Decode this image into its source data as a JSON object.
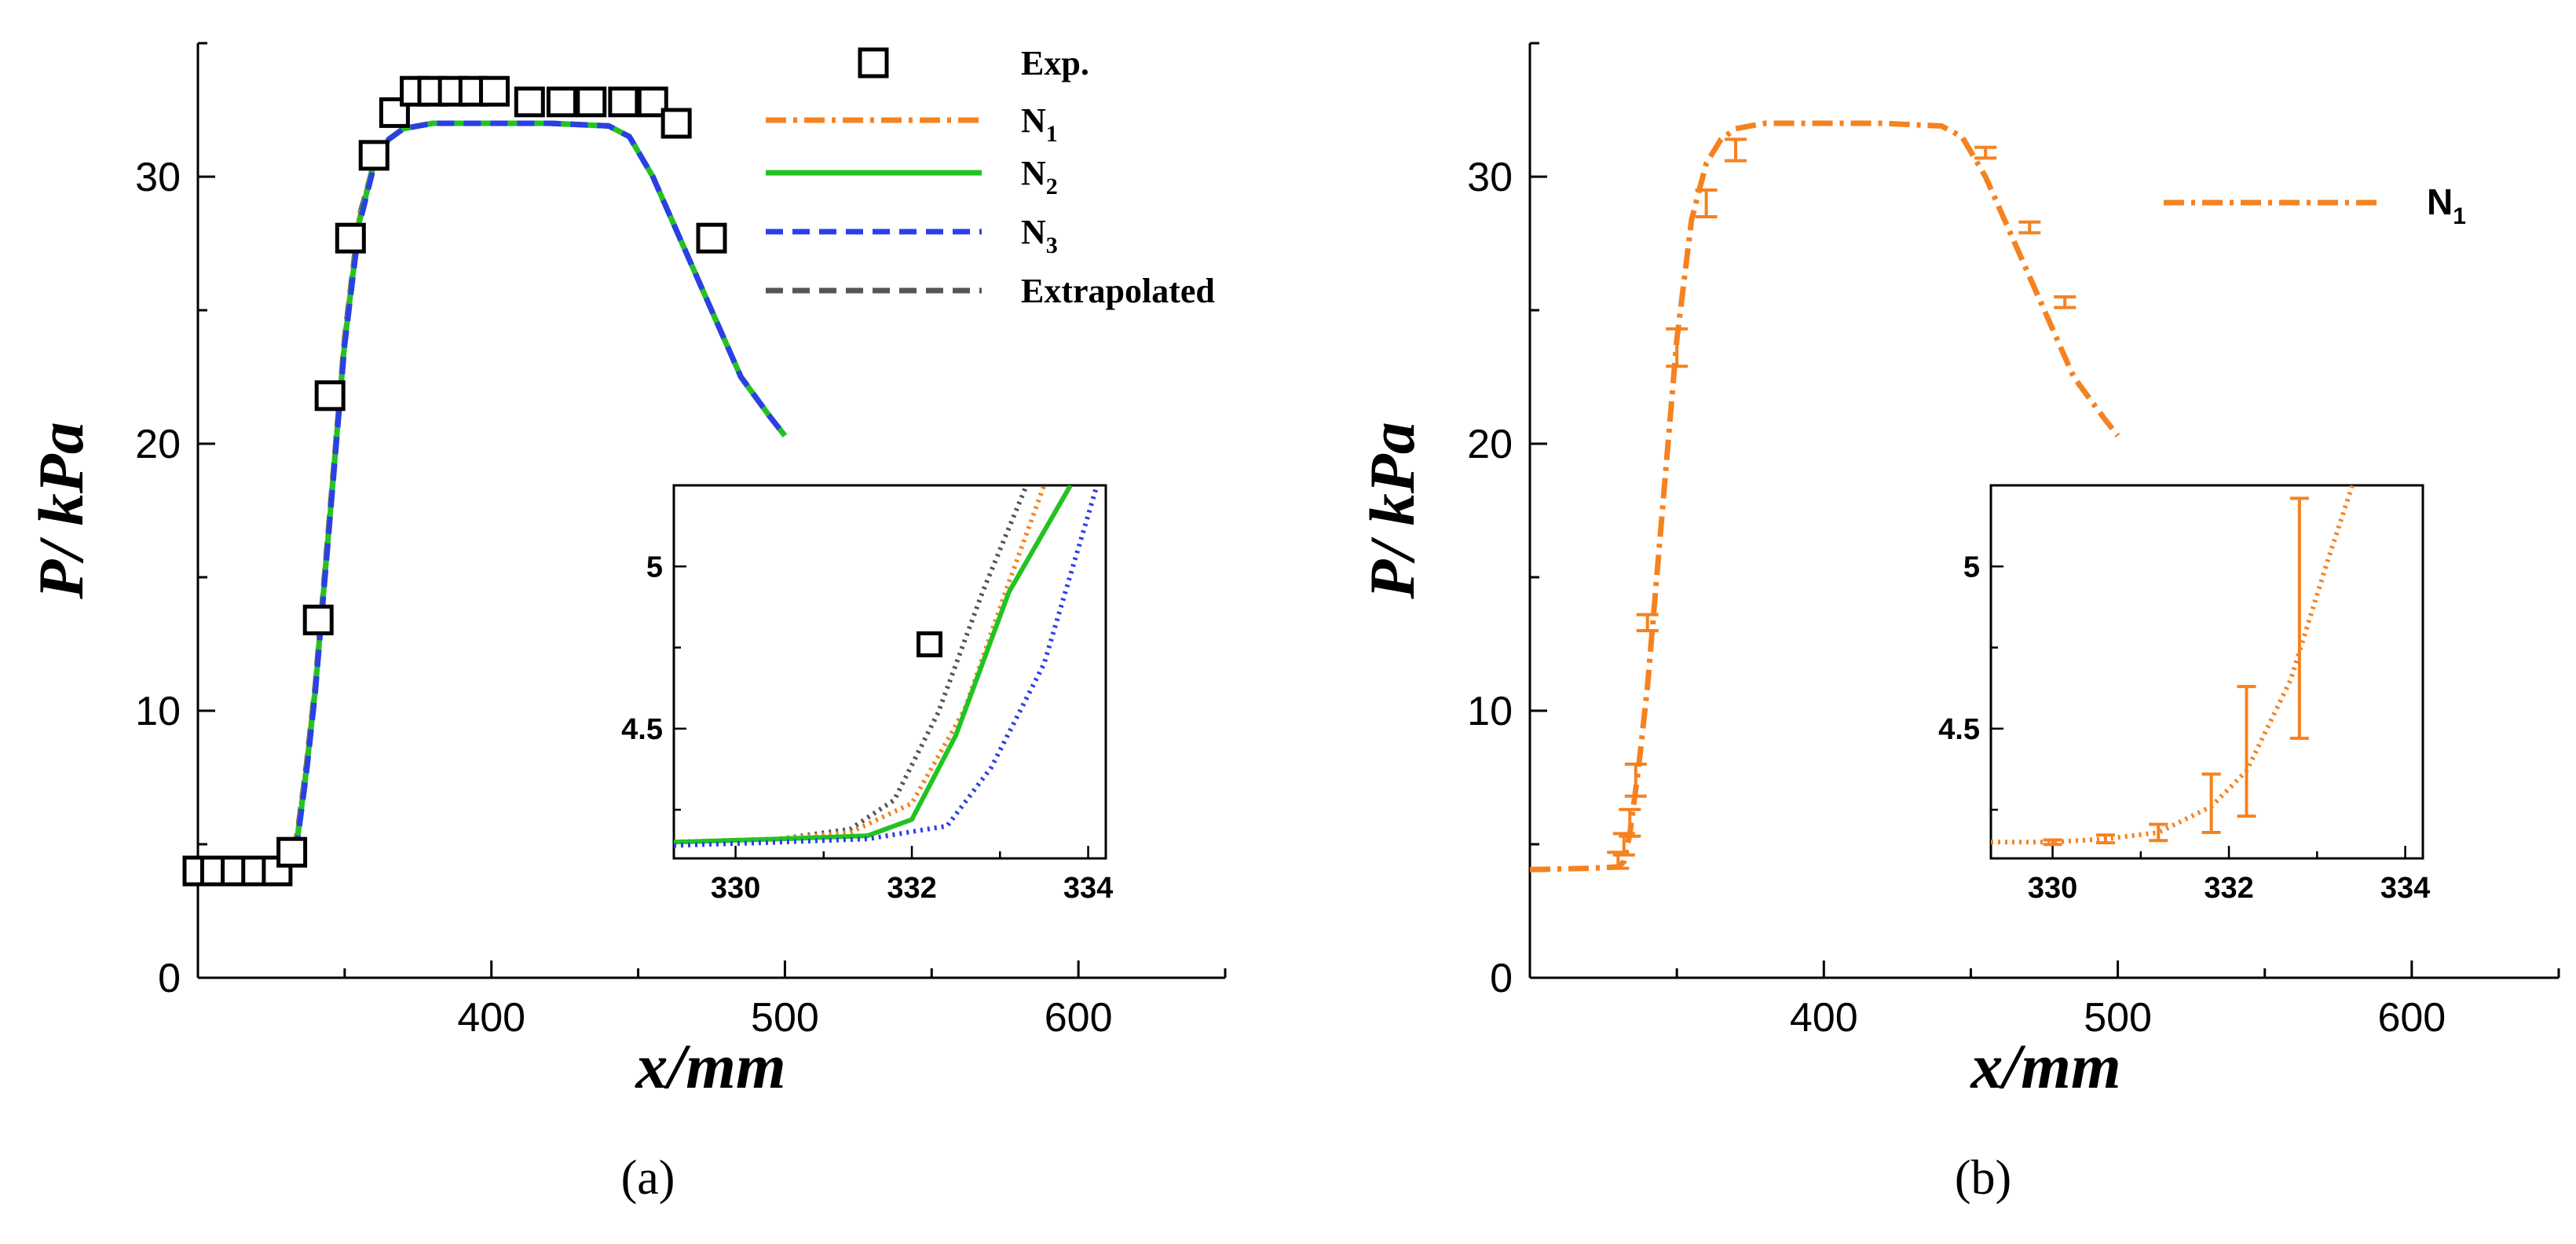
{
  "figure": {
    "caption_a": "(a)",
    "caption_b": "(b)"
  },
  "colors": {
    "experiment": "#000000",
    "N1": "#f58220",
    "N2": "#22c322",
    "N3": "#2b3fe6",
    "extrapolated": "#555555",
    "axes": "#000000"
  },
  "chart_data": [
    {
      "id": "a",
      "type": "line",
      "xlabel": "x/mm",
      "ylabel": "P/ kPa",
      "xlim": [
        300,
        650
      ],
      "ylim": [
        0,
        35
      ],
      "xticks": [
        400,
        500,
        600
      ],
      "yticks": [
        0,
        10,
        20,
        30
      ],
      "legend_position": "top-right",
      "legend": [
        {
          "label": "Exp.",
          "sub": "",
          "key": "exp",
          "style": "square-marker"
        },
        {
          "label": "N",
          "sub": "1",
          "key": "N1",
          "style": "dashdot"
        },
        {
          "label": "N",
          "sub": "2",
          "key": "N2",
          "style": "solid"
        },
        {
          "label": "N",
          "sub": "3",
          "key": "N3",
          "style": "dashed"
        },
        {
          "label": "Extrapolated",
          "sub": "",
          "key": "extrapolated",
          "style": "dashed"
        }
      ],
      "series": [
        {
          "name": "Exp.",
          "key": "exp",
          "type": "scatter",
          "x": [
            300,
            306,
            313,
            320,
            327,
            332,
            341,
            345,
            352,
            360,
            367,
            374,
            380,
            387,
            394,
            401,
            413,
            424,
            434,
            445,
            455,
            463,
            475
          ],
          "y": [
            4.0,
            4.0,
            4.0,
            4.0,
            4.0,
            4.7,
            13.4,
            21.8,
            27.7,
            30.8,
            32.4,
            33.2,
            33.2,
            33.2,
            33.2,
            33.2,
            32.8,
            32.8,
            32.8,
            32.8,
            32.8,
            32.0,
            27.7
          ]
        },
        {
          "name": "Extrapolated",
          "key": "extrapolated",
          "x": [
            300,
            320,
            330,
            332,
            334,
            337,
            340,
            345,
            350,
            355,
            360,
            365,
            370,
            380,
            390,
            400,
            420,
            440,
            447,
            455,
            465,
            475,
            485,
            495,
            500
          ],
          "y": [
            4.05,
            4.1,
            4.15,
            4.4,
            5.5,
            8.0,
            11.0,
            17.5,
            24.0,
            28.5,
            30.5,
            31.4,
            31.8,
            32.0,
            32.0,
            32.0,
            32.0,
            31.9,
            31.5,
            30.0,
            27.5,
            25.0,
            22.5,
            21.0,
            20.3
          ]
        },
        {
          "name": "N1",
          "key": "N1",
          "x": [
            300,
            320,
            330,
            332,
            334,
            337,
            340,
            345,
            350,
            355,
            360,
            365,
            370,
            380,
            390,
            400,
            420,
            440,
            447,
            455,
            465,
            475,
            485,
            495,
            500
          ],
          "y": [
            4.05,
            4.1,
            4.15,
            4.35,
            5.4,
            7.9,
            10.9,
            17.4,
            23.9,
            28.4,
            30.5,
            31.4,
            31.8,
            32.0,
            32.0,
            32.0,
            32.0,
            31.9,
            31.5,
            30.0,
            27.5,
            25.0,
            22.5,
            21.0,
            20.3
          ]
        },
        {
          "name": "N2",
          "key": "N2",
          "x": [
            300,
            320,
            330,
            332,
            334,
            337,
            340,
            345,
            350,
            355,
            360,
            365,
            370,
            380,
            390,
            400,
            420,
            440,
            447,
            455,
            465,
            475,
            485,
            495,
            500
          ],
          "y": [
            4.05,
            4.1,
            4.15,
            4.3,
            5.3,
            7.8,
            10.8,
            17.3,
            23.8,
            28.3,
            30.5,
            31.4,
            31.8,
            32.0,
            32.0,
            32.0,
            32.0,
            31.9,
            31.5,
            30.0,
            27.5,
            25.0,
            22.5,
            21.0,
            20.3
          ]
        },
        {
          "name": "N3",
          "key": "N3",
          "x": [
            300,
            320,
            330,
            332,
            334,
            337,
            340,
            345,
            350,
            355,
            360,
            365,
            370,
            380,
            390,
            400,
            420,
            440,
            447,
            455,
            465,
            475,
            485,
            495,
            500
          ],
          "y": [
            4.05,
            4.1,
            4.15,
            4.25,
            5.2,
            7.7,
            10.7,
            17.2,
            23.7,
            28.2,
            30.4,
            31.4,
            31.8,
            32.0,
            32.0,
            32.0,
            32.0,
            31.9,
            31.5,
            30.0,
            27.5,
            25.0,
            22.5,
            21.0,
            20.3
          ]
        }
      ],
      "inset": {
        "xlim": [
          329.3,
          334.2
        ],
        "ylim": [
          4.1,
          5.25
        ],
        "xticks": [
          330,
          332,
          334
        ],
        "yticks": [
          4.5,
          5
        ],
        "series": [
          {
            "key": "exp",
            "type": "scatter",
            "x": [
              332.2
            ],
            "y": [
              4.76
            ]
          },
          {
            "key": "extrapolated",
            "x": [
              329.3,
              330.5,
              331.3,
              331.8,
              332.3,
              332.8,
              333.3
            ],
            "y": [
              4.15,
              4.16,
              4.19,
              4.28,
              4.55,
              4.92,
              5.25
            ]
          },
          {
            "key": "N1",
            "x": [
              329.3,
              330.5,
              331.3,
              332.0,
              332.6,
              333.1,
              333.5
            ],
            "y": [
              4.15,
              4.16,
              4.18,
              4.27,
              4.56,
              4.95,
              5.25
            ]
          },
          {
            "key": "N2",
            "x": [
              329.3,
              330.5,
              331.5,
              332.0,
              332.5,
              333.1,
              333.8
            ],
            "y": [
              4.15,
              4.16,
              4.17,
              4.22,
              4.48,
              4.92,
              5.25
            ]
          },
          {
            "key": "N3",
            "x": [
              329.3,
              330.5,
              331.5,
              332.4,
              332.9,
              333.5,
              334.1
            ],
            "y": [
              4.14,
              4.15,
              4.16,
              4.2,
              4.38,
              4.7,
              5.25
            ]
          }
        ]
      }
    },
    {
      "id": "b",
      "type": "line",
      "xlabel": "x/mm",
      "ylabel": "P/ kPa",
      "xlim": [
        300,
        650
      ],
      "ylim": [
        0,
        35
      ],
      "xticks": [
        400,
        500,
        600
      ],
      "yticks": [
        0,
        10,
        20,
        30
      ],
      "legend_position": "top-right",
      "legend": [
        {
          "label": "N",
          "sub": "1",
          "key": "N1",
          "style": "dashdot"
        }
      ],
      "series": [
        {
          "name": "N1",
          "key": "N1",
          "x": [
            300,
            320,
            330,
            332,
            334,
            337,
            340,
            345,
            350,
            355,
            360,
            365,
            370,
            380,
            390,
            400,
            420,
            440,
            447,
            455,
            465,
            475,
            485,
            495,
            500
          ],
          "y": [
            4.05,
            4.1,
            4.15,
            4.35,
            5.4,
            7.9,
            10.9,
            17.4,
            23.9,
            28.4,
            30.5,
            31.4,
            31.8,
            32.0,
            32.0,
            32.0,
            32.0,
            31.9,
            31.5,
            30.0,
            27.5,
            25.0,
            22.5,
            21.0,
            20.3
          ]
        }
      ],
      "error_bars": {
        "key": "N1",
        "x": [
          330,
          332,
          334,
          336,
          340,
          350,
          360,
          370,
          455,
          470,
          482
        ],
        "y": [
          4.4,
          5.0,
          5.8,
          7.4,
          13.3,
          23.6,
          29.0,
          31.0,
          30.9,
          28.1,
          25.3
        ],
        "err": [
          0.3,
          0.4,
          0.5,
          0.6,
          0.3,
          0.7,
          0.5,
          0.4,
          0.2,
          0.2,
          0.2
        ]
      },
      "inset": {
        "xlim": [
          329.3,
          334.2
        ],
        "ylim": [
          4.1,
          5.25
        ],
        "xticks": [
          330,
          332,
          334
        ],
        "yticks": [
          4.5,
          5
        ],
        "series": [
          {
            "key": "N1",
            "x": [
              329.3,
              330.0,
              330.6,
              331.2,
              331.8,
              332.2,
              332.7,
              333.1,
              333.4
            ],
            "y": [
              4.15,
              4.15,
              4.16,
              4.18,
              4.26,
              4.37,
              4.65,
              5.0,
              5.25
            ]
          }
        ],
        "error_bars": {
          "x": [
            330.0,
            330.6,
            331.2,
            331.8,
            332.2,
            332.8
          ],
          "y": [
            4.15,
            4.16,
            4.18,
            4.27,
            4.43,
            4.84
          ],
          "err": [
            0.007,
            0.012,
            0.025,
            0.09,
            0.2,
            0.37
          ]
        }
      }
    }
  ]
}
